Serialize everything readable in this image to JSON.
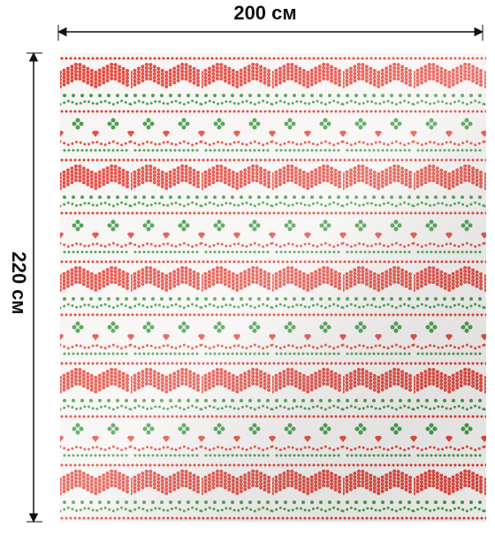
{
  "dimensions": {
    "width": "200 см",
    "height": "220 см"
  }
}
